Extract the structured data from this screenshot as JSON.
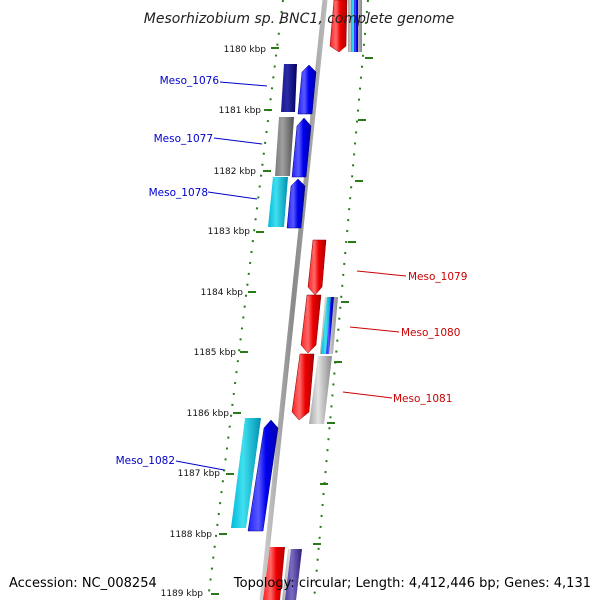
{
  "title": "Mesorhizobium sp. BNC1, complete genome",
  "accession": "Accession: NC_008254",
  "topology": "Topology: circular; Length: 4,412,446 bp; Genes: 4,131",
  "colors": {
    "forward_label": "#0000cc",
    "reverse_label": "#cc0000",
    "tick": "#2a7a1a",
    "backbone": "#888888"
  },
  "kbp_ticks": [
    "1180 kbp",
    "1181 kbp",
    "1182 kbp",
    "1183 kbp",
    "1184 kbp",
    "1185 kbp",
    "1186 kbp",
    "1187 kbp",
    "1188 kbp",
    "1189 kbp"
  ],
  "labels_left": [
    "Meso_1076",
    "Meso_1077",
    "Meso_1078",
    "Meso_1082"
  ],
  "labels_right": [
    "Meso_1079",
    "Meso_1080",
    "Meso_1081"
  ]
}
